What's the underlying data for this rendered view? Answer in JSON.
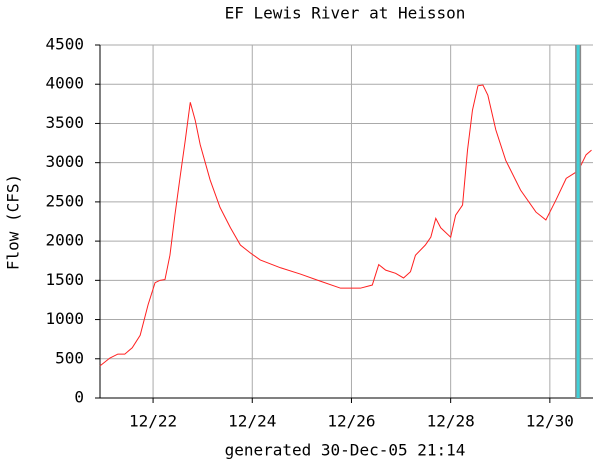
{
  "chart_data": {
    "type": "line",
    "title": "EF Lewis River at Heisson",
    "ylabel": "Flow (CFS)",
    "footer": "generated 30-Dec-05 21:14",
    "x": [
      20.93,
      21.13,
      21.29,
      21.43,
      21.58,
      21.74,
      21.9,
      22.04,
      22.14,
      22.24,
      22.34,
      22.44,
      22.55,
      22.65,
      22.75,
      22.85,
      22.95,
      23.15,
      23.35,
      23.56,
      23.76,
      23.96,
      24.16,
      24.57,
      24.97,
      25.37,
      25.78,
      26.18,
      26.42,
      26.55,
      26.69,
      26.89,
      27.05,
      27.19,
      27.29,
      27.49,
      27.6,
      27.7,
      27.8,
      28.0,
      28.1,
      28.24,
      28.34,
      28.44,
      28.55,
      28.65,
      28.75,
      28.91,
      29.11,
      29.41,
      29.72,
      29.92,
      30.12,
      30.33,
      30.53,
      30.63,
      30.73,
      30.84
    ],
    "series": [
      {
        "name": "Flow",
        "color": "#ff2020",
        "values": [
          410,
          510,
          560,
          560,
          640,
          800,
          1190,
          1470,
          1500,
          1510,
          1820,
          2330,
          2840,
          3290,
          3770,
          3540,
          3230,
          2780,
          2430,
          2170,
          1950,
          1850,
          1760,
          1660,
          1580,
          1490,
          1400,
          1400,
          1440,
          1700,
          1630,
          1590,
          1530,
          1610,
          1820,
          1950,
          2050,
          2290,
          2170,
          2050,
          2330,
          2460,
          3160,
          3670,
          3980,
          3990,
          3860,
          3420,
          3030,
          2650,
          2370,
          2270,
          2520,
          2800,
          2880,
          2970,
          3100,
          3160
        ]
      }
    ],
    "xlim": [
      20.93,
      30.87
    ],
    "xticks": [
      {
        "value": 22,
        "label": "12/22"
      },
      {
        "value": 24,
        "label": "12/24"
      },
      {
        "value": 26,
        "label": "12/26"
      },
      {
        "value": 28,
        "label": "12/28"
      },
      {
        "value": 30,
        "label": "12/30"
      }
    ],
    "ylim": [
      0,
      4500
    ],
    "yticks": [
      0,
      500,
      1000,
      1500,
      2000,
      2500,
      3000,
      3500,
      4000,
      4500
    ],
    "grid": true,
    "marker_x": 30.57,
    "marker_color": "#40d0d8"
  }
}
